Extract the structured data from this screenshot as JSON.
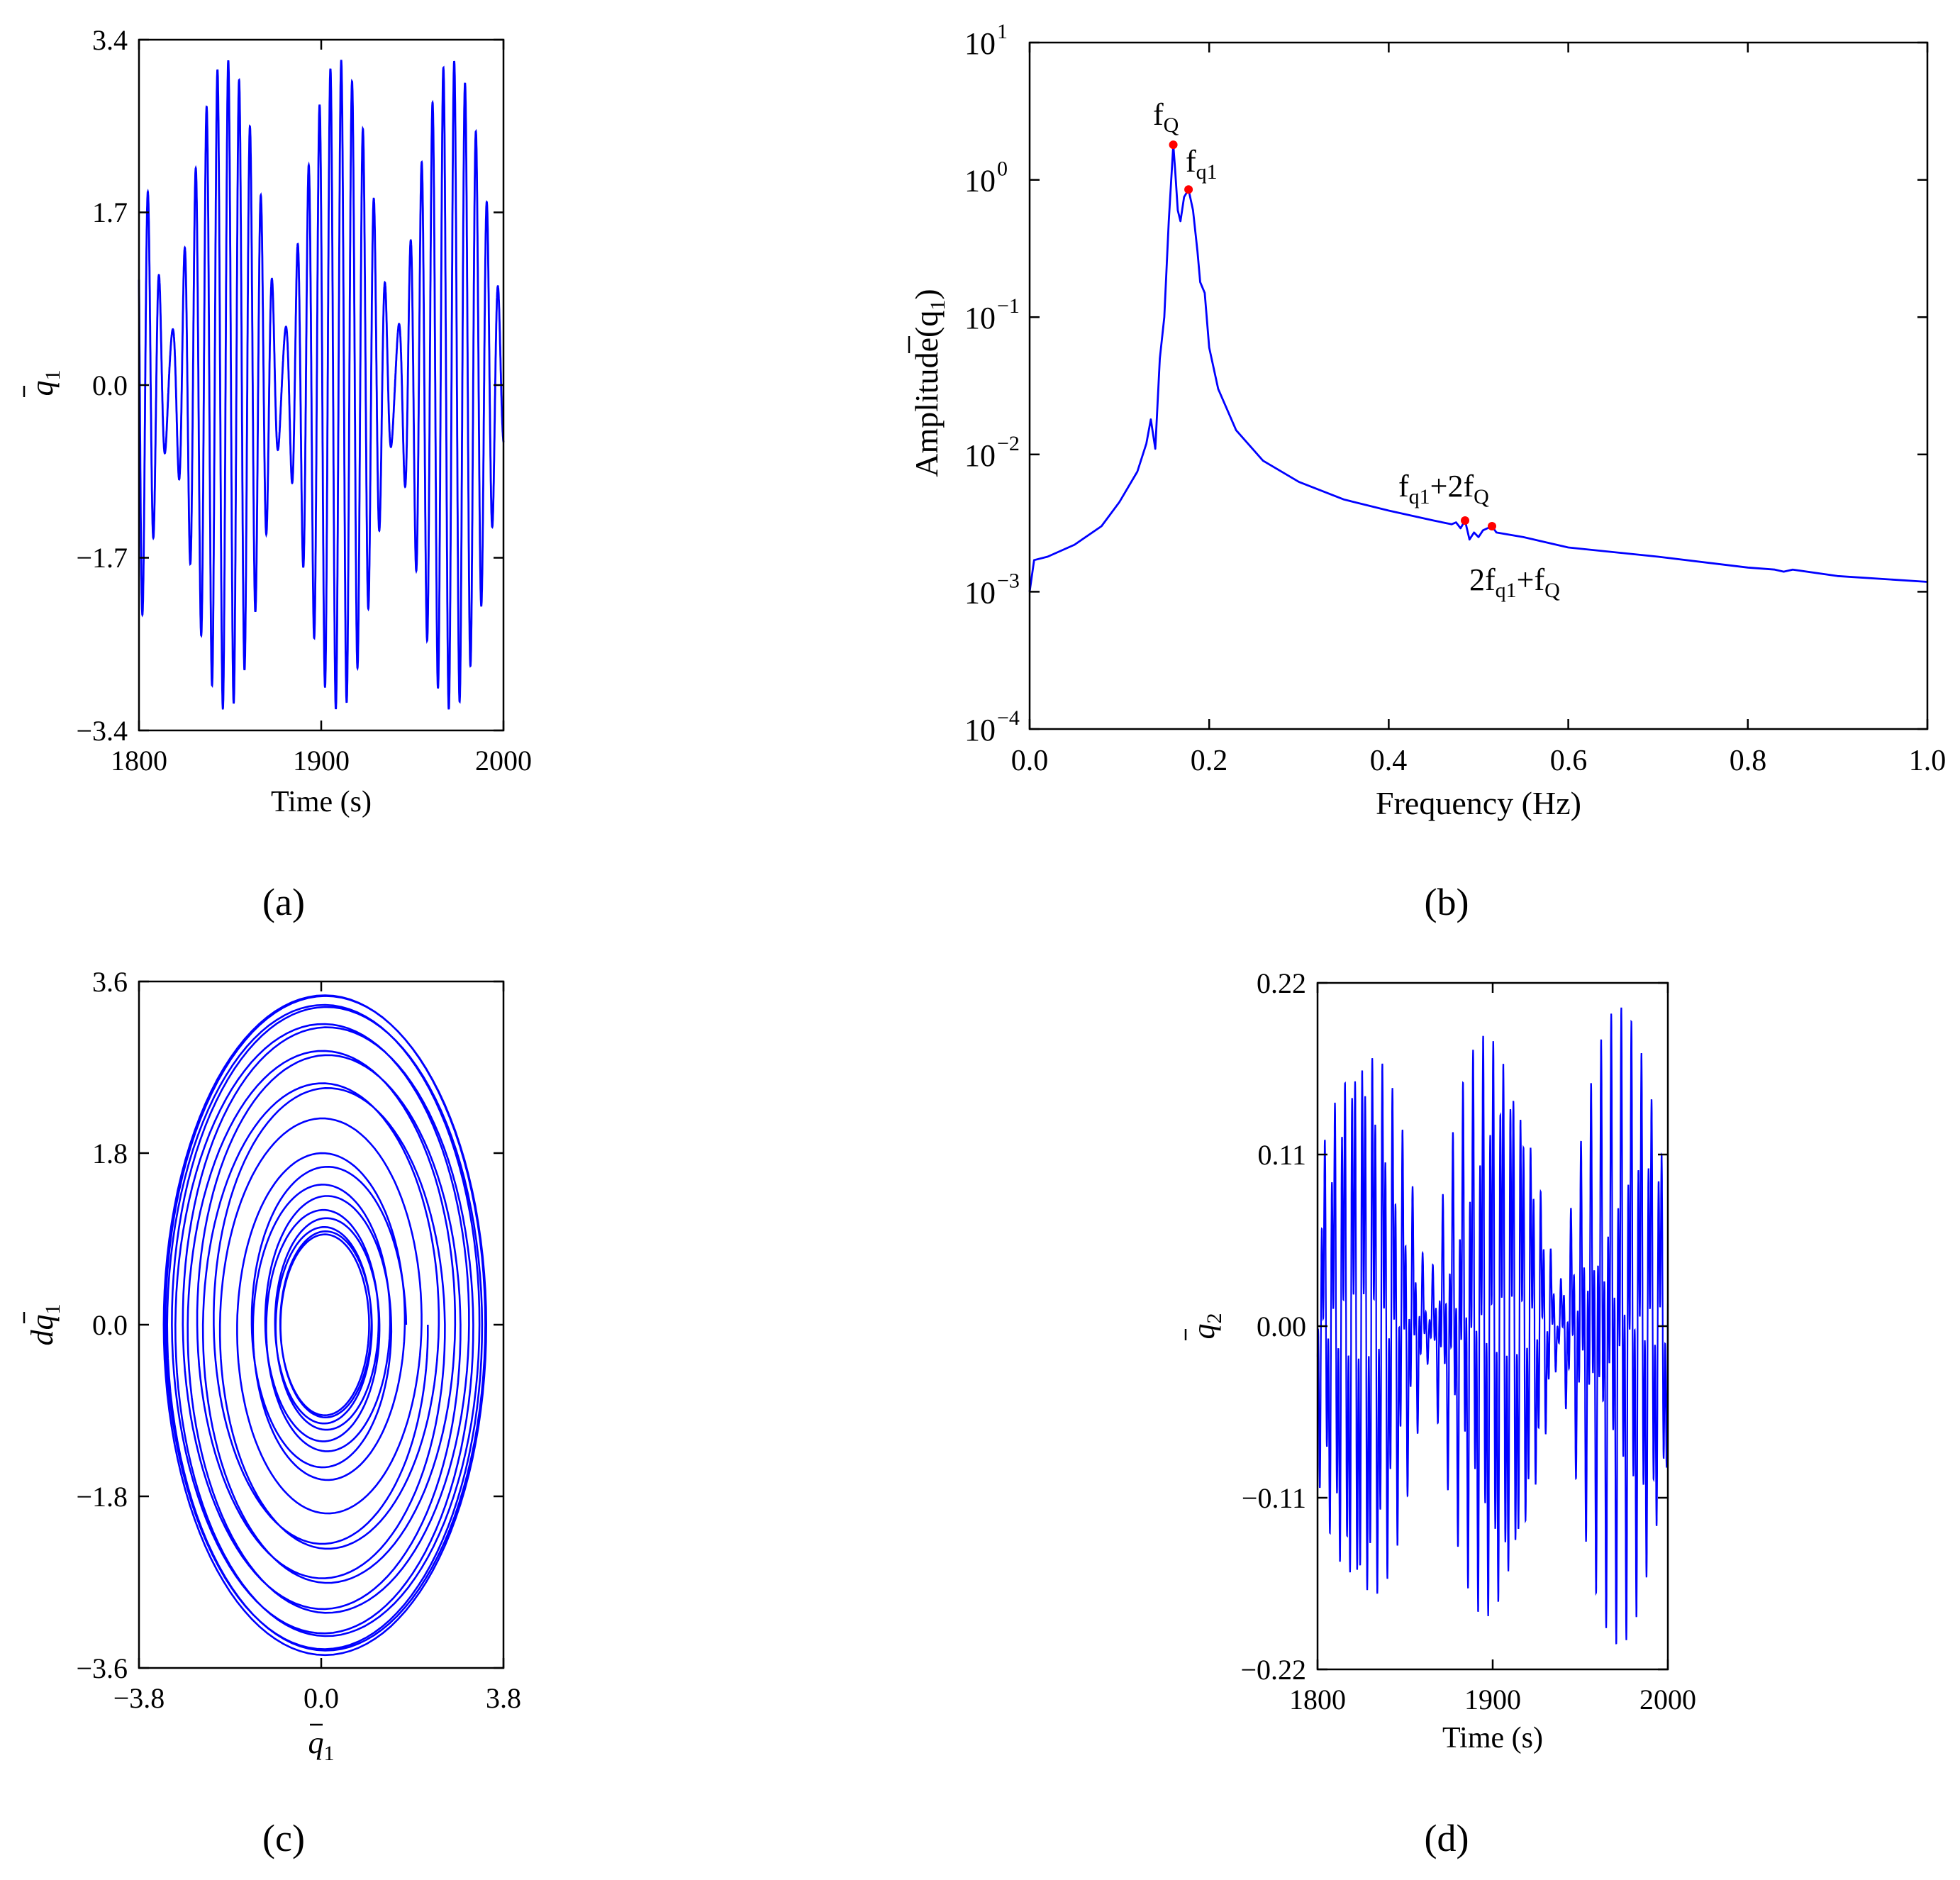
{
  "figure": {
    "panels": [
      {
        "id": "a",
        "caption": "(a)"
      },
      {
        "id": "b",
        "caption": "(b)"
      },
      {
        "id": "c",
        "caption": "(c)"
      },
      {
        "id": "d",
        "caption": "(d)"
      }
    ]
  },
  "chart_data": [
    {
      "panel": "a",
      "type": "line",
      "xlabel": "Time (s)",
      "ylabel": "q",
      "ylabel_sub": "1",
      "xlim": [
        1800,
        2000
      ],
      "ylim": [
        -3.4,
        3.4
      ],
      "xticks": [
        1800,
        1900,
        2000
      ],
      "xtick_labels": [
        "1800",
        "1900",
        "2000"
      ],
      "yticks": [
        -3.4,
        -1.7,
        0,
        1.7,
        3.4
      ],
      "ytick_labels": [
        "−3.4",
        "−1.7",
        "0.0",
        "1.7",
        "3.4"
      ],
      "series": [
        {
          "name": "q1",
          "color": "#0000ff",
          "model": "beat",
          "components": [
            {
              "amplitude": 1.85,
              "frequency_hz": 0.1613,
              "phase": 0.0
            },
            {
              "amplitude": 1.35,
              "frequency_hz": 0.1775,
              "phase": 0.4
            }
          ]
        }
      ]
    },
    {
      "panel": "b",
      "type": "line",
      "xlabel": "Frequency (Hz)",
      "ylabel": "Amplitude(q",
      "ylabel_sub": "1",
      "ylabel_close": ")",
      "yscale": "log",
      "xlim": [
        0.0,
        1.0
      ],
      "ylim": [
        0.0001,
        10
      ],
      "xticks": [
        0.0,
        0.2,
        0.4,
        0.6,
        0.8,
        1.0
      ],
      "xtick_labels": [
        "0.0",
        "0.2",
        "0.4",
        "0.6",
        "0.8",
        "1.0"
      ],
      "yticks": [
        0.0001,
        0.001,
        0.01,
        0.1,
        1,
        10
      ],
      "ytick_base": [
        "10",
        "10",
        "10",
        "10",
        "10",
        "10"
      ],
      "ytick_exp": [
        "−4",
        "−3",
        "−2",
        "−1",
        "0",
        "1"
      ],
      "series": [
        {
          "name": "spectrum",
          "color": "#0000ff",
          "x": [
            0.0,
            0.005,
            0.02,
            0.05,
            0.08,
            0.1,
            0.12,
            0.13,
            0.135,
            0.14,
            0.145,
            0.15,
            0.155,
            0.16,
            0.162,
            0.165,
            0.168,
            0.172,
            0.177,
            0.182,
            0.187,
            0.19,
            0.195,
            0.2,
            0.21,
            0.23,
            0.26,
            0.3,
            0.35,
            0.4,
            0.45,
            0.47,
            0.475,
            0.48,
            0.485,
            0.49,
            0.495,
            0.5,
            0.505,
            0.51,
            0.515,
            0.52,
            0.55,
            0.6,
            0.7,
            0.8,
            0.83,
            0.84,
            0.85,
            0.9,
            1.0
          ],
          "y": [
            0.001,
            0.0017,
            0.0018,
            0.0022,
            0.003,
            0.0045,
            0.0075,
            0.012,
            0.018,
            0.011,
            0.05,
            0.1,
            0.5,
            1.8,
            1.2,
            0.6,
            0.5,
            0.75,
            0.85,
            0.6,
            0.3,
            0.18,
            0.15,
            0.06,
            0.03,
            0.015,
            0.009,
            0.0063,
            0.0047,
            0.0039,
            0.0033,
            0.0031,
            0.0032,
            0.0029,
            0.0033,
            0.0024,
            0.0027,
            0.0025,
            0.0028,
            0.0029,
            0.003,
            0.0027,
            0.0025,
            0.0021,
            0.0018,
            0.0015,
            0.00145,
            0.0014,
            0.00145,
            0.0013,
            0.00118
          ]
        }
      ],
      "markers": [
        {
          "x": 0.16,
          "y": 1.8,
          "color": "#ff0000"
        },
        {
          "x": 0.177,
          "y": 0.85,
          "color": "#ff0000"
        },
        {
          "x": 0.485,
          "y": 0.0033,
          "color": "#ff0000"
        },
        {
          "x": 0.515,
          "y": 0.003,
          "color": "#ff0000"
        }
      ],
      "annotations": [
        {
          "id": "fQ",
          "base": "f",
          "sub": "Q",
          "tail": "",
          "sub2": ""
        },
        {
          "id": "fq1",
          "base": "f",
          "sub": "q1",
          "tail": "",
          "sub2": ""
        },
        {
          "id": "comb1",
          "base": "f",
          "sub": "q1",
          "tail": "+2f",
          "sub2": "Q"
        },
        {
          "id": "comb2",
          "base": "2f",
          "sub": "q1",
          "tail": "+f",
          "sub2": "Q"
        }
      ]
    },
    {
      "panel": "c",
      "type": "line",
      "subtype": "phase-portrait",
      "xlabel": "q",
      "xlabel_sub": "1",
      "ylabel": "dq",
      "ylabel_sub": "1",
      "xlim": [
        -3.8,
        3.8
      ],
      "ylim": [
        -3.6,
        3.6
      ],
      "xticks": [
        -3.8,
        0,
        3.8
      ],
      "xtick_labels": [
        "−3.8",
        "0.0",
        "3.8"
      ],
      "yticks": [
        -3.6,
        -1.8,
        0,
        1.8,
        3.6
      ],
      "ytick_labels": [
        "−3.6",
        "−1.8",
        "0.0",
        "1.8",
        "3.6"
      ],
      "series": [
        {
          "name": "trajectory",
          "color": "#0000ff",
          "radius_min": 0.9,
          "radius_max": 3.3,
          "loops": 20
        }
      ]
    },
    {
      "panel": "d",
      "type": "line",
      "xlabel": "Time (s)",
      "ylabel": "q",
      "ylabel_sub": "2",
      "xlim": [
        1800,
        2000
      ],
      "ylim": [
        -0.22,
        0.22
      ],
      "xticks": [
        1800,
        1900,
        2000
      ],
      "xtick_labels": [
        "1800",
        "1900",
        "2000"
      ],
      "yticks": [
        -0.22,
        -0.11,
        0,
        0.11,
        0.22
      ],
      "ytick_labels": [
        "−0.22",
        "−0.11",
        "0.00",
        "0.11",
        "0.22"
      ],
      "series": [
        {
          "name": "q2",
          "color": "#0000ff",
          "model": "modulated-multifrequency",
          "envelope_max": 0.21,
          "envelope_min": 0.02
        }
      ]
    }
  ]
}
